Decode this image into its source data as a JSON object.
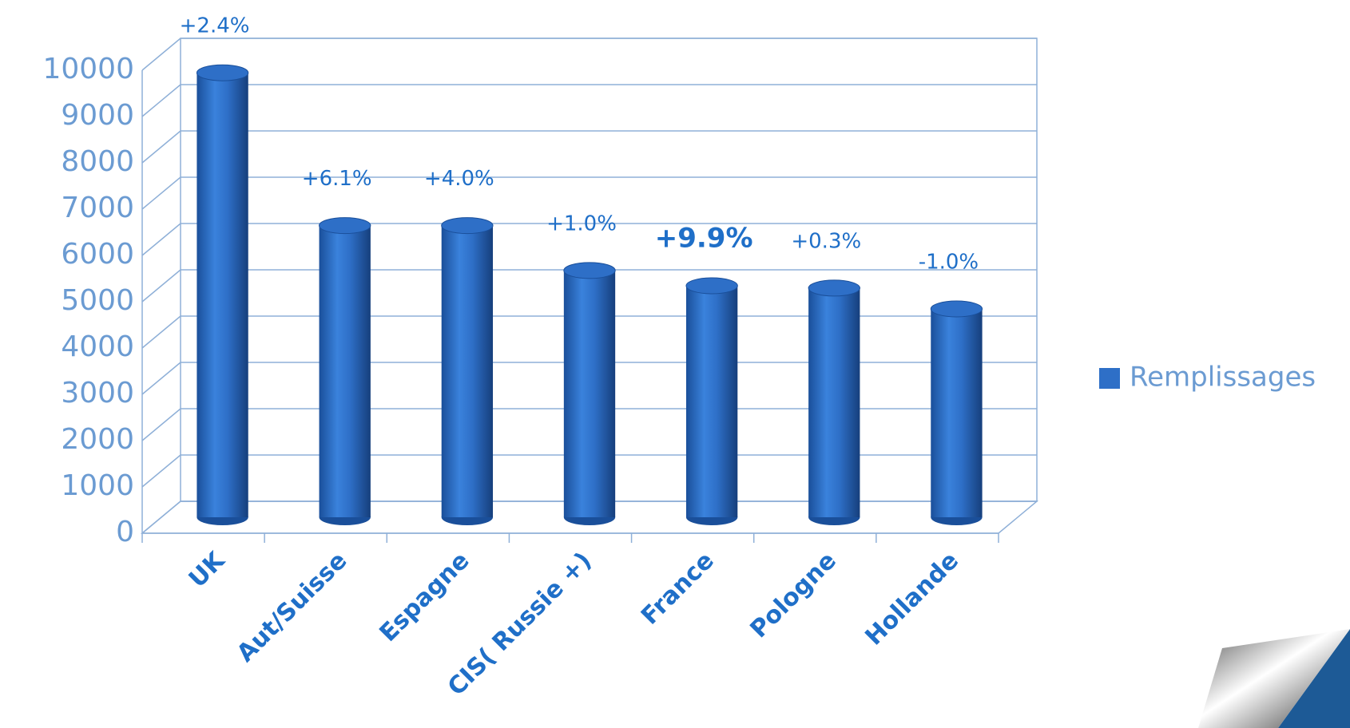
{
  "chart_data": {
    "type": "bar",
    "style": "cylinder-3d",
    "categories": [
      "UK",
      "Aut/Suisse",
      "Espagne",
      "CIS( Russie +)",
      "France",
      "Pologne",
      "Hollande"
    ],
    "series": [
      {
        "name": "Remplissages",
        "color": "#2e6fc7",
        "values": [
          9600,
          6300,
          6300,
          5330,
          5000,
          4950,
          4500
        ]
      }
    ],
    "annotations": [
      "+2.4%",
      "+6.1%",
      "+4.0%",
      "+1.0%",
      "+9.9%",
      "+0.3%",
      "-1.0%"
    ],
    "ylim": [
      0,
      10000
    ],
    "yticks": [
      0,
      1000,
      2000,
      3000,
      4000,
      5000,
      6000,
      7000,
      8000,
      9000,
      10000
    ],
    "grid": true,
    "legend": "right"
  }
}
